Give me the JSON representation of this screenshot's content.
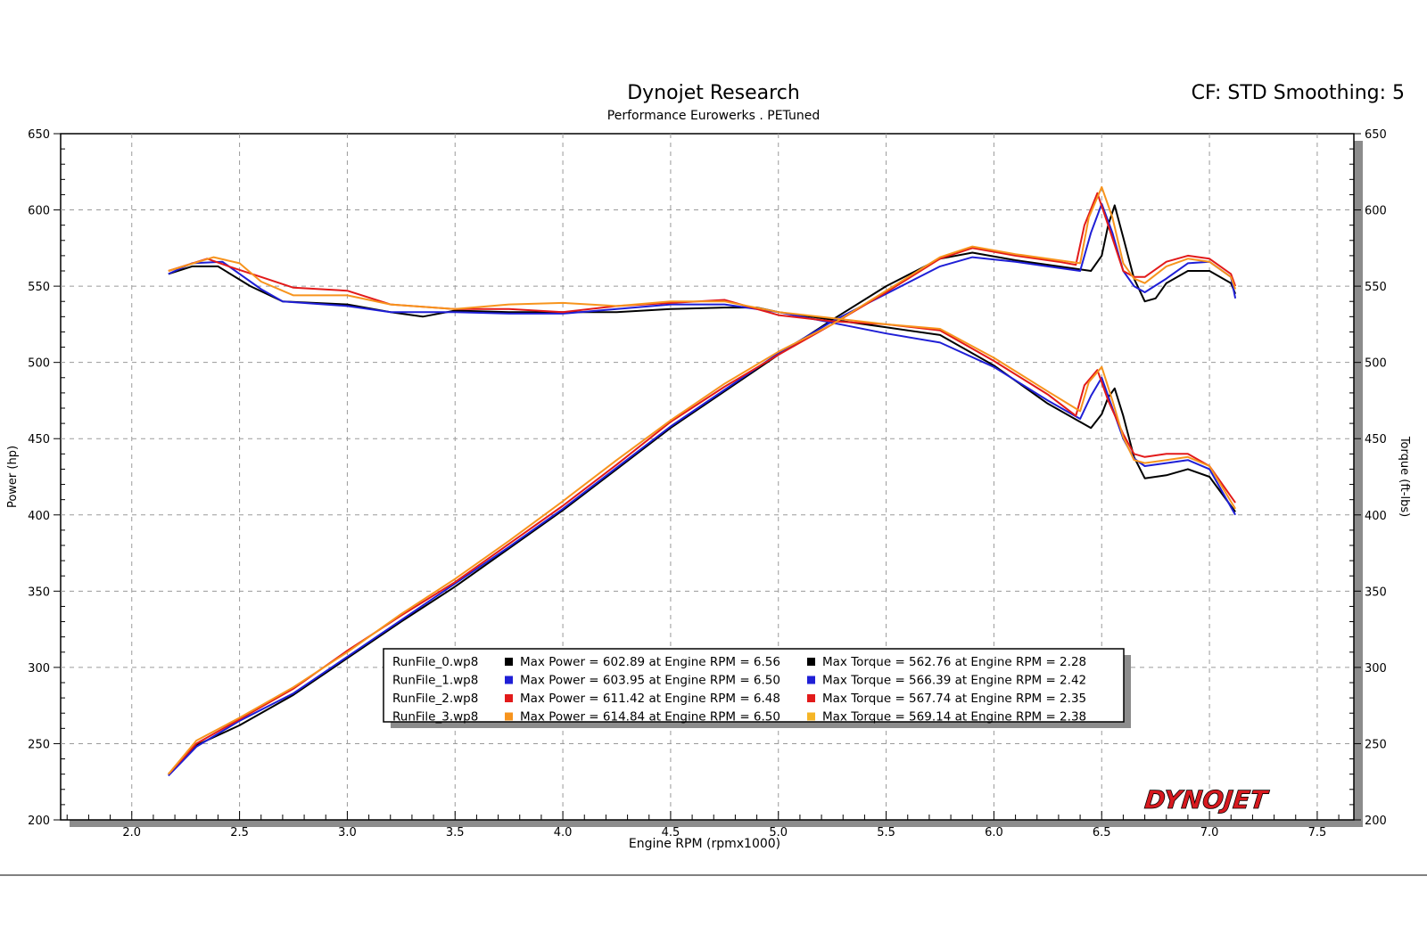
{
  "header": {
    "title": "Dynojet Research",
    "subtitle": "Performance Eurowerks . PETuned",
    "correction": "CF: STD Smoothing: 5",
    "logo_text": "DYNOJET"
  },
  "colors": {
    "run0": "#000000",
    "run1": "#1f1fd6",
    "run2": "#e21a1a",
    "run3": "#f7941d",
    "run3_torque_swatch": "#f5b526",
    "grid": "#9a9a9a",
    "logo": "#d7191f"
  },
  "chart_data": {
    "type": "line",
    "title": "Dynojet Research",
    "subtitle": "Performance Eurowerks . PETuned",
    "xlabel": "Engine RPM (rpmx1000)",
    "ylabel_left": "Power (hp)",
    "ylabel_right": "Torque (ft-lbs)",
    "xlim": [
      1.67,
      7.67
    ],
    "ylim": [
      200,
      650
    ],
    "x_ticks": [
      "2.0",
      "2.5",
      "3.0",
      "3.5",
      "4.0",
      "4.5",
      "5.0",
      "5.5",
      "6.0",
      "6.5",
      "7.0",
      "7.5"
    ],
    "y_ticks": [
      "200",
      "250",
      "300",
      "350",
      "400",
      "450",
      "500",
      "550",
      "600",
      "650"
    ],
    "grid": true,
    "legend_position": "bottom-center",
    "series": [
      {
        "name": "RunFile_0.wp8",
        "power": [
          [
            2.17,
            230
          ],
          [
            2.3,
            249
          ],
          [
            2.5,
            262
          ],
          [
            2.75,
            282
          ],
          [
            3.0,
            306
          ],
          [
            3.25,
            330
          ],
          [
            3.5,
            353
          ],
          [
            3.75,
            378
          ],
          [
            4.0,
            403
          ],
          [
            4.25,
            430
          ],
          [
            4.5,
            457
          ],
          [
            4.75,
            481
          ],
          [
            5.0,
            505
          ],
          [
            5.25,
            528
          ],
          [
            5.5,
            550
          ],
          [
            5.75,
            568
          ],
          [
            5.9,
            572
          ],
          [
            6.1,
            567
          ],
          [
            6.3,
            563
          ],
          [
            6.45,
            560
          ],
          [
            6.5,
            570
          ],
          [
            6.53,
            590
          ],
          [
            6.56,
            603
          ],
          [
            6.6,
            582
          ],
          [
            6.65,
            555
          ],
          [
            6.7,
            540
          ],
          [
            6.75,
            542
          ],
          [
            6.8,
            552
          ],
          [
            6.9,
            560
          ],
          [
            7.0,
            560
          ],
          [
            7.1,
            552
          ],
          [
            7.12,
            545
          ]
        ],
        "torque": [
          [
            2.17,
            558
          ],
          [
            2.28,
            563
          ],
          [
            2.4,
            563
          ],
          [
            2.55,
            550
          ],
          [
            2.7,
            540
          ],
          [
            3.0,
            538
          ],
          [
            3.2,
            533
          ],
          [
            3.35,
            530
          ],
          [
            3.5,
            534
          ],
          [
            3.75,
            533
          ],
          [
            4.0,
            533
          ],
          [
            4.25,
            533
          ],
          [
            4.5,
            535
          ],
          [
            4.75,
            536
          ],
          [
            4.9,
            536
          ],
          [
            5.0,
            533
          ],
          [
            5.25,
            528
          ],
          [
            5.5,
            523
          ],
          [
            5.75,
            518
          ],
          [
            6.0,
            498
          ],
          [
            6.25,
            473
          ],
          [
            6.45,
            457
          ],
          [
            6.5,
            466
          ],
          [
            6.53,
            477
          ],
          [
            6.56,
            483
          ],
          [
            6.6,
            465
          ],
          [
            6.65,
            438
          ],
          [
            6.7,
            424
          ],
          [
            6.8,
            426
          ],
          [
            6.9,
            430
          ],
          [
            7.0,
            425
          ],
          [
            7.12,
            402
          ]
        ]
      },
      {
        "name": "RunFile_1.wp8",
        "power": [
          [
            2.17,
            229
          ],
          [
            2.3,
            248
          ],
          [
            2.5,
            265
          ],
          [
            2.75,
            283
          ],
          [
            3.0,
            307
          ],
          [
            3.25,
            331
          ],
          [
            3.5,
            355
          ],
          [
            3.75,
            379
          ],
          [
            4.0,
            404
          ],
          [
            4.25,
            431
          ],
          [
            4.5,
            458
          ],
          [
            4.75,
            482
          ],
          [
            5.0,
            506
          ],
          [
            5.25,
            527
          ],
          [
            5.5,
            545
          ],
          [
            5.75,
            563
          ],
          [
            5.9,
            569
          ],
          [
            6.1,
            566
          ],
          [
            6.3,
            562
          ],
          [
            6.4,
            560
          ],
          [
            6.45,
            585
          ],
          [
            6.5,
            604
          ],
          [
            6.55,
            585
          ],
          [
            6.6,
            560
          ],
          [
            6.65,
            550
          ],
          [
            6.7,
            546
          ],
          [
            6.8,
            555
          ],
          [
            6.9,
            565
          ],
          [
            7.0,
            566
          ],
          [
            7.1,
            556
          ],
          [
            7.12,
            542
          ]
        ],
        "torque": [
          [
            2.17,
            558
          ],
          [
            2.28,
            565
          ],
          [
            2.42,
            566
          ],
          [
            2.6,
            548
          ],
          [
            2.7,
            540
          ],
          [
            3.0,
            537
          ],
          [
            3.2,
            533
          ],
          [
            3.5,
            533
          ],
          [
            3.75,
            532
          ],
          [
            4.0,
            532
          ],
          [
            4.25,
            535
          ],
          [
            4.5,
            538
          ],
          [
            4.75,
            538
          ],
          [
            5.0,
            533
          ],
          [
            5.25,
            526
          ],
          [
            5.5,
            519
          ],
          [
            5.75,
            513
          ],
          [
            6.0,
            497
          ],
          [
            6.25,
            475
          ],
          [
            6.4,
            463
          ],
          [
            6.45,
            478
          ],
          [
            6.5,
            490
          ],
          [
            6.55,
            470
          ],
          [
            6.6,
            450
          ],
          [
            6.65,
            437
          ],
          [
            6.7,
            432
          ],
          [
            6.8,
            434
          ],
          [
            6.9,
            436
          ],
          [
            7.0,
            430
          ],
          [
            7.12,
            400
          ]
        ]
      },
      {
        "name": "RunFile_2.wp8",
        "power": [
          [
            2.17,
            230
          ],
          [
            2.3,
            250
          ],
          [
            2.5,
            266
          ],
          [
            2.75,
            286
          ],
          [
            3.0,
            311
          ],
          [
            3.25,
            334
          ],
          [
            3.5,
            356
          ],
          [
            3.75,
            381
          ],
          [
            4.0,
            406
          ],
          [
            4.25,
            433
          ],
          [
            4.5,
            461
          ],
          [
            4.75,
            484
          ],
          [
            5.0,
            505
          ],
          [
            5.25,
            525
          ],
          [
            5.5,
            546
          ],
          [
            5.75,
            568
          ],
          [
            5.9,
            575
          ],
          [
            6.1,
            570
          ],
          [
            6.3,
            566
          ],
          [
            6.38,
            564
          ],
          [
            6.42,
            590
          ],
          [
            6.48,
            611
          ],
          [
            6.53,
            590
          ],
          [
            6.6,
            560
          ],
          [
            6.65,
            556
          ],
          [
            6.7,
            556
          ],
          [
            6.8,
            566
          ],
          [
            6.9,
            570
          ],
          [
            7.0,
            568
          ],
          [
            7.1,
            558
          ],
          [
            7.12,
            550
          ]
        ],
        "torque": [
          [
            2.17,
            560
          ],
          [
            2.35,
            568
          ],
          [
            2.45,
            563
          ],
          [
            2.6,
            556
          ],
          [
            2.75,
            549
          ],
          [
            3.0,
            547
          ],
          [
            3.2,
            538
          ],
          [
            3.5,
            535
          ],
          [
            3.75,
            535
          ],
          [
            4.0,
            533
          ],
          [
            4.25,
            537
          ],
          [
            4.5,
            539
          ],
          [
            4.75,
            541
          ],
          [
            5.0,
            531
          ],
          [
            5.25,
            527
          ],
          [
            5.5,
            525
          ],
          [
            5.75,
            521
          ],
          [
            6.0,
            501
          ],
          [
            6.25,
            479
          ],
          [
            6.38,
            465
          ],
          [
            6.42,
            485
          ],
          [
            6.48,
            495
          ],
          [
            6.53,
            475
          ],
          [
            6.6,
            453
          ],
          [
            6.65,
            440
          ],
          [
            6.7,
            438
          ],
          [
            6.8,
            440
          ],
          [
            6.9,
            440
          ],
          [
            7.0,
            432
          ],
          [
            7.12,
            408
          ]
        ]
      },
      {
        "name": "RunFile_3.wp8",
        "power": [
          [
            2.17,
            230
          ],
          [
            2.3,
            252
          ],
          [
            2.5,
            267
          ],
          [
            2.75,
            287
          ],
          [
            3.0,
            310
          ],
          [
            3.25,
            335
          ],
          [
            3.5,
            358
          ],
          [
            3.75,
            383
          ],
          [
            4.0,
            409
          ],
          [
            4.25,
            436
          ],
          [
            4.5,
            462
          ],
          [
            4.75,
            486
          ],
          [
            5.0,
            507
          ],
          [
            5.25,
            525
          ],
          [
            5.5,
            547
          ],
          [
            5.75,
            569
          ],
          [
            5.9,
            576
          ],
          [
            6.1,
            571
          ],
          [
            6.3,
            567
          ],
          [
            6.4,
            565
          ],
          [
            6.44,
            595
          ],
          [
            6.5,
            615
          ],
          [
            6.55,
            595
          ],
          [
            6.6,
            565
          ],
          [
            6.65,
            555
          ],
          [
            6.7,
            552
          ],
          [
            6.8,
            563
          ],
          [
            6.9,
            568
          ],
          [
            7.0,
            566
          ],
          [
            7.1,
            556
          ],
          [
            7.12,
            548
          ]
        ],
        "torque": [
          [
            2.17,
            560
          ],
          [
            2.38,
            569
          ],
          [
            2.5,
            565
          ],
          [
            2.6,
            553
          ],
          [
            2.75,
            544
          ],
          [
            3.0,
            544
          ],
          [
            3.2,
            538
          ],
          [
            3.5,
            535
          ],
          [
            3.75,
            538
          ],
          [
            4.0,
            539
          ],
          [
            4.25,
            537
          ],
          [
            4.5,
            540
          ],
          [
            4.75,
            540
          ],
          [
            5.0,
            533
          ],
          [
            5.25,
            529
          ],
          [
            5.5,
            525
          ],
          [
            5.75,
            522
          ],
          [
            6.0,
            503
          ],
          [
            6.25,
            481
          ],
          [
            6.4,
            468
          ],
          [
            6.44,
            487
          ],
          [
            6.5,
            497
          ],
          [
            6.55,
            475
          ],
          [
            6.6,
            451
          ],
          [
            6.65,
            436
          ],
          [
            6.7,
            434
          ],
          [
            6.8,
            436
          ],
          [
            6.9,
            438
          ],
          [
            7.0,
            432
          ],
          [
            7.12,
            404
          ]
        ]
      }
    ]
  },
  "legend": [
    {
      "file": "RunFile_0.wp8",
      "power": "Max Power = 602.89 at Engine RPM = 6.56",
      "torque": "Max Torque = 562.76 at Engine RPM = 2.28"
    },
    {
      "file": "RunFile_1.wp8",
      "power": "Max Power = 603.95 at Engine RPM = 6.50",
      "torque": "Max Torque = 566.39 at Engine RPM = 2.42"
    },
    {
      "file": "RunFile_2.wp8",
      "power": "Max Power = 611.42 at Engine RPM = 6.48",
      "torque": "Max Torque = 567.74 at Engine RPM = 2.35"
    },
    {
      "file": "RunFile_3.wp8",
      "power": "Max Power = 614.84 at Engine RPM = 6.50",
      "torque": "Max Torque = 569.14 at Engine RPM = 2.38"
    }
  ]
}
